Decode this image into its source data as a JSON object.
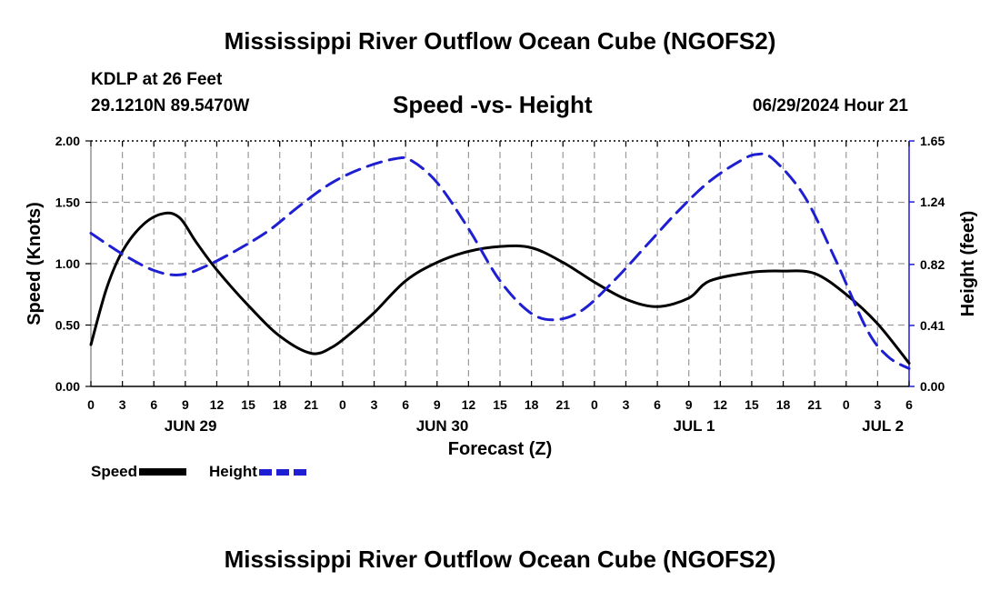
{
  "header": {
    "title": "Mississippi River Outflow Ocean Cube (NGOFS2)",
    "station": "KDLP at 26 Feet",
    "coords": "29.1210N  89.5470W",
    "subtitle": "Speed -vs- Height",
    "datetime": "06/29/2024 Hour 21"
  },
  "footer": {
    "title": "Mississippi River Outflow Ocean Cube (NGOFS2)"
  },
  "legend": {
    "speed": "Speed",
    "height": "Height"
  },
  "colors": {
    "speed": "#000000",
    "height": "#1e1ed2",
    "grid": "#9a9a9a"
  },
  "chart_data": {
    "type": "line",
    "title": "Speed -vs- Height",
    "xlabel": "Forecast (Z)",
    "ylabel_left": "Speed (Knots)",
    "ylabel_right": "Height (feet)",
    "x_range_hours": [
      0,
      78
    ],
    "x_tick_labels": [
      "0",
      "3",
      "6",
      "9",
      "12",
      "15",
      "18",
      "21",
      "0",
      "3",
      "6",
      "9",
      "12",
      "15",
      "18",
      "21",
      "0",
      "3",
      "6",
      "9",
      "12",
      "15",
      "18",
      "21",
      "0",
      "3",
      "6"
    ],
    "date_labels": [
      {
        "label": "JUN 29",
        "hour": 9.5
      },
      {
        "label": "JUN 30",
        "hour": 33.5
      },
      {
        "label": "JUL 1",
        "hour": 57.5
      },
      {
        "label": "JUL 2",
        "hour": 75.5
      }
    ],
    "y_left": {
      "range": [
        0,
        2.0
      ],
      "ticks": [
        0,
        0.5,
        1.0,
        1.5,
        2.0
      ],
      "tick_labels": [
        "0.00",
        "0.50",
        "1.00",
        "1.50",
        "2.00"
      ]
    },
    "y_right": {
      "range": [
        0,
        1.65
      ],
      "ticks": [
        0,
        0.41,
        0.82,
        1.24,
        1.65
      ],
      "tick_labels": [
        "0.00",
        "0.41",
        "0.82",
        "1.24",
        "1.65"
      ]
    },
    "series": [
      {
        "name": "Speed",
        "axis": "left",
        "style": "solid",
        "x": [
          0,
          1.5,
          3,
          5,
          7,
          8.5,
          10,
          12,
          15,
          18,
          21,
          23,
          25,
          27,
          30,
          33,
          36,
          39,
          42,
          45,
          48,
          51,
          54,
          57,
          59,
          63,
          66,
          69,
          72,
          75,
          78
        ],
        "values": [
          0.34,
          0.8,
          1.1,
          1.32,
          1.41,
          1.37,
          1.18,
          0.95,
          0.66,
          0.41,
          0.27,
          0.32,
          0.45,
          0.6,
          0.86,
          1.01,
          1.1,
          1.14,
          1.13,
          1.01,
          0.85,
          0.71,
          0.65,
          0.72,
          0.86,
          0.93,
          0.94,
          0.92,
          0.75,
          0.51,
          0.19
        ]
      },
      {
        "name": "Height",
        "axis": "right",
        "style": "dashed",
        "x": [
          0,
          3,
          6,
          8.5,
          11,
          14,
          17,
          20,
          23,
          26,
          29,
          30.5,
          33,
          36,
          39,
          42,
          44.5,
          47,
          50,
          53,
          56,
          59,
          62,
          63.5,
          65,
          68,
          71,
          74,
          76,
          78
        ],
        "values": [
          1.03,
          0.89,
          0.78,
          0.75,
          0.81,
          0.92,
          1.05,
          1.22,
          1.37,
          1.47,
          1.53,
          1.52,
          1.37,
          1.06,
          0.71,
          0.49,
          0.45,
          0.52,
          0.72,
          0.95,
          1.18,
          1.38,
          1.52,
          1.56,
          1.53,
          1.28,
          0.85,
          0.38,
          0.2,
          0.12
        ]
      }
    ]
  }
}
